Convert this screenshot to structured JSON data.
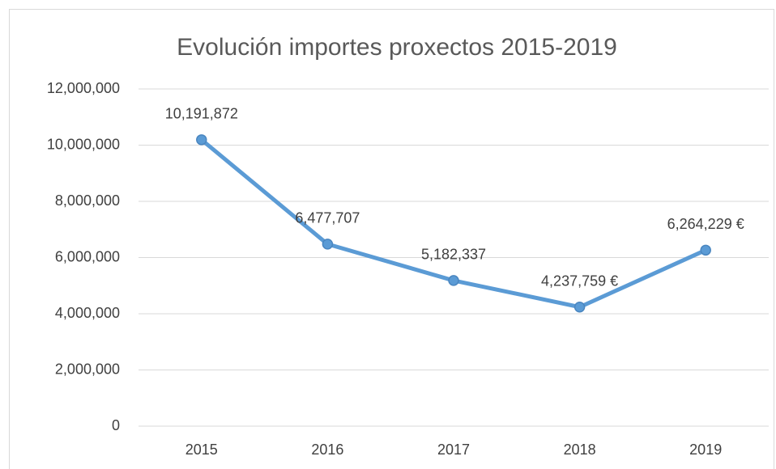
{
  "chart_data": {
    "type": "line",
    "title": "Evolución importes proxectos 2015-2019",
    "categories": [
      "2015",
      "2016",
      "2017",
      "2018",
      "2019"
    ],
    "values": [
      10191872,
      6477707,
      5182337,
      4237759,
      6264229
    ],
    "value_labels": [
      "10,191,872",
      "6,477,707",
      "5,182,337",
      "4,237,759 €",
      "6,264,229 €"
    ],
    "color": "#5b9bd5",
    "ylim": [
      0,
      12000000
    ],
    "yticks": [
      0,
      {
        "value": 2000000,
        "label": "2,000,000"
      },
      {
        "value": 4000000,
        "label": "4,000,000"
      },
      {
        "value": 6000000,
        "label": "6,000,000"
      },
      {
        "value": 8000000,
        "label": "8,000,000"
      },
      {
        "value": 10000000,
        "label": "10,000,000"
      },
      {
        "value": 12000000,
        "label": "12,000,000"
      }
    ],
    "grid": true
  }
}
